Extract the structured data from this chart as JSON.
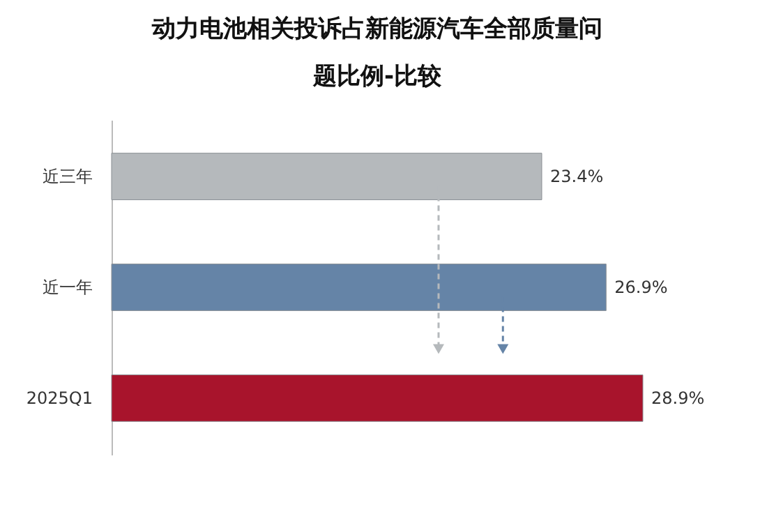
{
  "chart_data": {
    "type": "bar",
    "orientation": "horizontal",
    "title": "动力电池相关投诉占新能源汽车全部质量问题比例-比较",
    "categories": [
      "近三年",
      "近一年",
      "2025Q1"
    ],
    "values": [
      23.4,
      26.9,
      28.9
    ],
    "colors": [
      "#b5b9bc",
      "#6584a7",
      "#a8142c"
    ],
    "value_labels": [
      "23.4%",
      "26.9%",
      "28.9%"
    ]
  }
}
